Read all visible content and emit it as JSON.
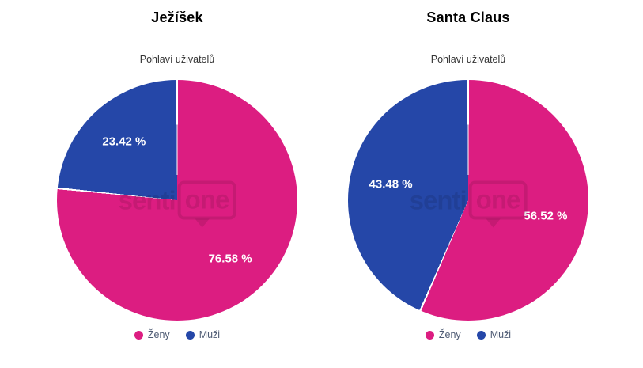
{
  "page": {
    "background": "#ffffff"
  },
  "watermark": {
    "text_left": "senti",
    "text_right": "one"
  },
  "colors": {
    "zeny": "#DC1D81",
    "muzi": "#2547A8",
    "slice_label_text": "#ffffff",
    "legend_text": "#4d5a73",
    "slice_border": "#ffffff"
  },
  "chart_data": [
    {
      "type": "pie",
      "title": "Ježíšek",
      "subtitle": "Pohlaví uživatelů",
      "series": [
        {
          "name": "Ženy",
          "value": 76.58,
          "label": "76.58 %",
          "color": "#DC1D81"
        },
        {
          "name": "Muži",
          "value": 23.42,
          "label": "23.42 %",
          "color": "#2547A8"
        }
      ],
      "start_angle_deg": 0,
      "direction": "clockwise",
      "legend": [
        "Ženy",
        "Muži"
      ],
      "legend_position": "bottom"
    },
    {
      "type": "pie",
      "title": "Santa Claus",
      "subtitle": "Pohlaví uživatelů",
      "series": [
        {
          "name": "Ženy",
          "value": 56.52,
          "label": "56.52 %",
          "color": "#DC1D81"
        },
        {
          "name": "Muži",
          "value": 43.48,
          "label": "43.48 %",
          "color": "#2547A8"
        }
      ],
      "start_angle_deg": 0,
      "direction": "clockwise",
      "legend": [
        "Ženy",
        "Muži"
      ],
      "legend_position": "bottom"
    }
  ]
}
